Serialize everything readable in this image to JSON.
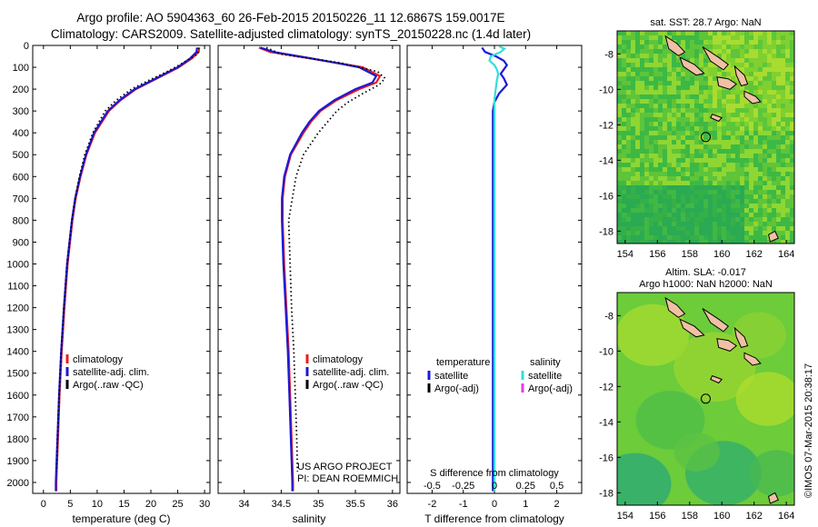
{
  "header": {
    "title_line1": "Argo profile: AO 5904363_60 26-Feb-2015 20150226_11 12.6867S 159.0017E",
    "title_line2": "Climatology: CARS2009. Satellite-adjusted climatology: synTS_20150228.nc (1.4d later)"
  },
  "credits": {
    "project": "US ARGO PROJECT",
    "pi": "PI: DEAN ROEMMICH",
    "side": "©IMOS 07-Mar-2015 20:38:17"
  },
  "colors": {
    "climatology": "#ee1c1c",
    "satellite": "#1a1ad6",
    "argo": "#000000",
    "sal_satellite": "#33dddd",
    "sal_argo": "#e040e0",
    "land": "#f0c0a6"
  },
  "depth_axis": {
    "range": [
      0,
      2050
    ],
    "ticks": [
      0,
      100,
      200,
      300,
      400,
      500,
      600,
      700,
      800,
      900,
      1000,
      1100,
      1200,
      1300,
      1400,
      1500,
      1600,
      1700,
      1800,
      1900,
      2000
    ]
  },
  "chart_data": [
    {
      "type": "line",
      "id": "temperature",
      "xlabel": "temperature (deg C)",
      "ylabel": "",
      "xlim": [
        -2,
        31
      ],
      "ylim": [
        2050,
        0
      ],
      "xticks": [
        0,
        5,
        10,
        15,
        20,
        25,
        30
      ],
      "legend_position": "lower-left",
      "legend": [
        "climatology",
        "satellite-adj. clim.",
        "Argo(..raw -QC)"
      ],
      "series": [
        {
          "name": "climatology",
          "color": "climatology",
          "style": "solid",
          "depth": [
            10,
            30,
            60,
            100,
            150,
            200,
            250,
            300,
            400,
            500,
            600,
            700,
            800,
            1000,
            1200,
            1400,
            1600,
            1800,
            2000,
            2040
          ],
          "values": [
            29.0,
            28.9,
            27.6,
            25.2,
            21.2,
            17.2,
            14.4,
            12.2,
            9.6,
            8.0,
            6.9,
            6.0,
            5.4,
            4.5,
            3.9,
            3.4,
            3.0,
            2.7,
            2.4,
            2.4
          ]
        },
        {
          "name": "satellite-adj. clim.",
          "color": "satellite",
          "style": "solid",
          "depth": [
            10,
            30,
            60,
            100,
            150,
            200,
            250,
            300,
            400,
            500,
            600,
            700,
            800,
            1000,
            1200,
            1400,
            1600,
            1800,
            2000,
            2040
          ],
          "values": [
            28.6,
            28.5,
            27.3,
            25.0,
            21.0,
            17.0,
            14.2,
            12.0,
            9.4,
            7.9,
            6.8,
            5.9,
            5.3,
            4.4,
            3.8,
            3.3,
            2.9,
            2.6,
            2.3,
            2.3
          ]
        },
        {
          "name": "Argo(..raw -QC)",
          "color": "argo",
          "style": "dotted",
          "depth": [
            10,
            40,
            80,
            120,
            160,
            200,
            250,
            300,
            400,
            500,
            600,
            700,
            800,
            1000,
            1200,
            1400,
            1600,
            1800,
            1950
          ],
          "values": [
            28.9,
            28.7,
            26.0,
            23.0,
            19.6,
            16.4,
            13.6,
            11.5,
            9.2,
            7.7,
            6.7,
            5.9,
            5.3,
            4.4,
            3.8,
            3.3,
            2.9,
            2.6,
            2.4
          ]
        }
      ]
    },
    {
      "type": "line",
      "id": "salinity",
      "xlabel": "salinity",
      "ylabel": "",
      "xlim": [
        33.65,
        36.1
      ],
      "ylim": [
        2050,
        0
      ],
      "xticks": [
        34,
        34.5,
        35,
        35.5,
        36
      ],
      "legend_position": "lower-left",
      "legend": [
        "climatology",
        "satellite-adj. clim.",
        "Argo(..raw -QC)"
      ],
      "series": [
        {
          "name": "climatology",
          "color": "climatology",
          "style": "solid",
          "depth": [
            10,
            30,
            60,
            100,
            140,
            170,
            200,
            250,
            300,
            350,
            400,
            500,
            600,
            700,
            800,
            1000,
            1200,
            1400,
            1600,
            1800,
            2000,
            2040
          ],
          "values": [
            34.2,
            34.35,
            34.9,
            35.6,
            35.83,
            35.78,
            35.55,
            35.25,
            35.03,
            34.9,
            34.8,
            34.63,
            34.55,
            34.52,
            34.52,
            34.54,
            34.57,
            34.6,
            34.62,
            34.64,
            34.66,
            34.66
          ]
        },
        {
          "name": "satellite-adj. clim.",
          "color": "satellite",
          "style": "solid",
          "depth": [
            10,
            30,
            60,
            100,
            140,
            170,
            200,
            250,
            300,
            350,
            400,
            500,
            600,
            700,
            800,
            1000,
            1200,
            1400,
            1600,
            1800,
            2000,
            2040
          ],
          "values": [
            34.22,
            34.4,
            34.92,
            35.55,
            35.78,
            35.73,
            35.5,
            35.22,
            35.01,
            34.88,
            34.78,
            34.62,
            34.54,
            34.51,
            34.51,
            34.53,
            34.56,
            34.59,
            34.61,
            34.63,
            34.65,
            34.65
          ]
        },
        {
          "name": "Argo(..raw -QC)",
          "color": "argo",
          "style": "dotted",
          "depth": [
            10,
            40,
            80,
            120,
            150,
            180,
            220,
            260,
            300,
            400,
            500,
            600,
            800,
            1000,
            1200,
            1400,
            1600,
            1800,
            1950
          ],
          "values": [
            34.3,
            34.5,
            35.3,
            35.8,
            35.9,
            35.82,
            35.6,
            35.4,
            35.25,
            35.0,
            34.8,
            34.7,
            34.6,
            34.62,
            34.64,
            34.67,
            34.69,
            34.71,
            34.72
          ]
        }
      ]
    },
    {
      "type": "line",
      "id": "differences",
      "xlabel": "T difference from climatology",
      "xlabel_top": "S difference from climatology",
      "xlim": [
        -2.8,
        2.8
      ],
      "ylim": [
        2050,
        0
      ],
      "xticks": [
        -2,
        -1,
        0,
        1,
        2
      ],
      "sticks_labels": [
        "-0.5",
        "-0.25",
        "0",
        "0.25",
        "0.5"
      ],
      "sticks_values": [
        -0.5,
        -0.25,
        0,
        0.25,
        0.5
      ],
      "legend_position": "lower-center",
      "legend_headers": [
        "temperature",
        "salinity"
      ],
      "legend": [
        "satellite",
        "Argo(-adj)",
        "satellite",
        "Argo(-adj)"
      ],
      "series": [
        {
          "name": "temperature satellite",
          "color": "satellite",
          "style": "solid",
          "depth": [
            10,
            30,
            50,
            70,
            90,
            110,
            130,
            150,
            180,
            220,
            260,
            300,
            400,
            600,
            800,
            1200,
            1600,
            2000,
            2040
          ],
          "values": [
            -0.4,
            -0.3,
            0.05,
            0.3,
            0.4,
            0.3,
            0.2,
            0.3,
            0.4,
            0.15,
            0.0,
            -0.05,
            -0.05,
            -0.05,
            -0.05,
            -0.05,
            -0.05,
            -0.05,
            -0.05
          ]
        },
        {
          "name": "salinity satellite",
          "color": "sal_satellite",
          "style": "solid",
          "scale": "salinity",
          "depth": [
            5,
            15,
            30,
            50,
            70,
            90,
            110,
            130,
            160,
            200,
            250,
            300,
            400,
            600,
            800,
            1000,
            1200,
            1400,
            1600,
            1800,
            2000,
            2040
          ],
          "values": [
            0.04,
            0.08,
            0.05,
            -0.03,
            -0.04,
            0.0,
            0.02,
            0.03,
            0.02,
            0.01,
            0.0,
            0.0,
            0.0,
            0.0,
            0.0,
            0.0,
            0.0,
            0.0,
            0.0,
            0.0,
            0.0,
            0.0
          ]
        }
      ]
    }
  ],
  "maps": [
    {
      "id": "sst",
      "title_lines": [
        "sat. SST: 28.7 Argo: NaN"
      ],
      "xticks": [
        154,
        156,
        158,
        160,
        162,
        164
      ],
      "yticks": [
        -8,
        -10,
        -12,
        -14,
        -16,
        -18
      ],
      "xlim": [
        153.5,
        164.5
      ],
      "ylim": [
        -18.7,
        -6.7
      ],
      "marker": {
        "lon": 159.0,
        "lat": -12.69
      }
    },
    {
      "id": "sla",
      "title_lines": [
        "Altim. SLA: -0.017",
        "Argo h1000: NaN h2000: NaN"
      ],
      "xticks": [
        154,
        156,
        158,
        160,
        162,
        164
      ],
      "yticks": [
        -8,
        -10,
        -12,
        -14,
        -16,
        -18
      ],
      "xlim": [
        153.5,
        164.5
      ],
      "ylim": [
        -18.7,
        -6.7
      ],
      "marker": {
        "lon": 159.0,
        "lat": -12.69
      }
    }
  ]
}
